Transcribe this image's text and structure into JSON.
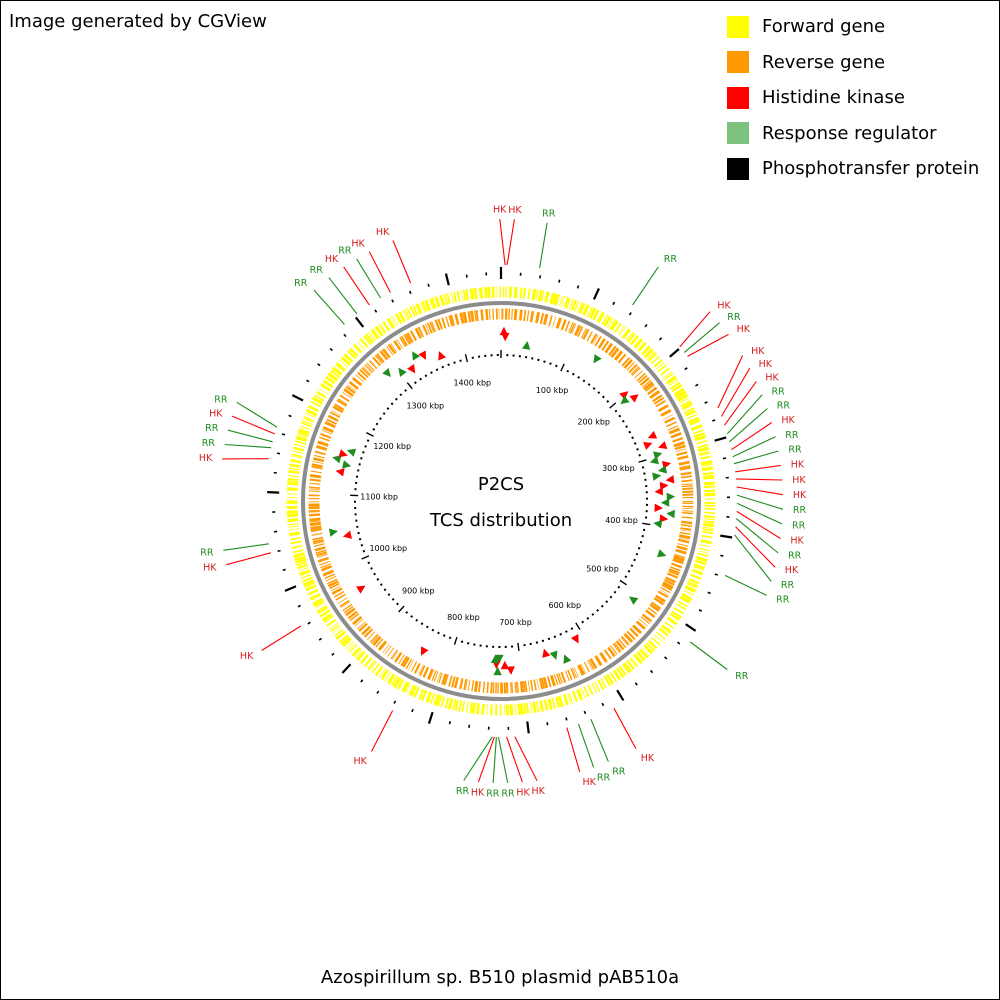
{
  "credit": "Image generated by CGView",
  "plasmid_name": "Azospirillum sp. B510 plasmid pAB510a",
  "center": {
    "line1": "P2CS",
    "line2": "TCS distribution"
  },
  "legend": [
    {
      "label": "Forward gene",
      "color": "#ffff00"
    },
    {
      "label": "Reverse gene",
      "color": "#ff9900"
    },
    {
      "label": "Histidine kinase",
      "color": "#ff0000"
    },
    {
      "label": "Response regulator",
      "color": "#7dc27d"
    },
    {
      "label": "Phosphotransfer protein",
      "color": "#000000"
    }
  ],
  "colors": {
    "forward": "#ffff00",
    "reverse": "#ff9900",
    "hk": "#ff0000",
    "hk_label": "#d62020",
    "rr": "#1e8c1e",
    "rr_label": "#1e8c1e",
    "backbone": "#8c8c8c"
  },
  "sequence_length_kbp": 1455,
  "tick_labels": [
    "100 kbp",
    "200 kbp",
    "300 kbp",
    "400 kbp",
    "500 kbp",
    "600 kbp",
    "700 kbp",
    "800 kbp",
    "900 kbp",
    "1000 kbp",
    "1100 kbp",
    "1200 kbp",
    "1300 kbp",
    "1400 kbp"
  ],
  "tick_positions_kbp": [
    100,
    200,
    300,
    400,
    500,
    600,
    700,
    800,
    900,
    1000,
    1100,
    1200,
    1300,
    1400
  ],
  "features": [
    {
      "type": "HK",
      "pos_kbp": 4,
      "label": "HK"
    },
    {
      "type": "HK",
      "pos_kbp": 6,
      "label": "HK"
    },
    {
      "type": "RR",
      "pos_kbp": 38,
      "label": "RR"
    },
    {
      "type": "RR",
      "pos_kbp": 137,
      "label": "RR"
    },
    {
      "type": "HK",
      "pos_kbp": 199,
      "label": "HK"
    },
    {
      "type": "RR",
      "pos_kbp": 206,
      "label": "RR"
    },
    {
      "type": "HK",
      "pos_kbp": 211,
      "label": "HK"
    },
    {
      "type": "HK",
      "pos_kbp": 270,
      "label": "HK"
    },
    {
      "type": "HK",
      "pos_kbp": 279,
      "label": "HK"
    },
    {
      "type": "HK",
      "pos_kbp": 288,
      "label": "HK"
    },
    {
      "type": "RR",
      "pos_kbp": 297,
      "label": "RR"
    },
    {
      "type": "RR",
      "pos_kbp": 305,
      "label": "RR"
    },
    {
      "type": "HK",
      "pos_kbp": 313,
      "label": "HK"
    },
    {
      "type": "RR",
      "pos_kbp": 320,
      "label": "RR"
    },
    {
      "type": "RR",
      "pos_kbp": 327,
      "label": "RR"
    },
    {
      "type": "HK",
      "pos_kbp": 335,
      "label": "HK"
    },
    {
      "type": "HK",
      "pos_kbp": 342,
      "label": "HK"
    },
    {
      "type": "HK",
      "pos_kbp": 350,
      "label": "HK"
    },
    {
      "type": "RR",
      "pos_kbp": 358,
      "label": "RR"
    },
    {
      "type": "RR",
      "pos_kbp": 366,
      "label": "RR"
    },
    {
      "type": "HK",
      "pos_kbp": 374,
      "label": "HK"
    },
    {
      "type": "RR",
      "pos_kbp": 381,
      "label": "RR"
    },
    {
      "type": "HK",
      "pos_kbp": 389,
      "label": "HK"
    },
    {
      "type": "RR",
      "pos_kbp": 397,
      "label": "RR"
    },
    {
      "type": "RR",
      "pos_kbp": 438,
      "label": "RR"
    },
    {
      "type": "RR",
      "pos_kbp": 512,
      "label": "RR"
    },
    {
      "type": "HK",
      "pos_kbp": 612,
      "label": "HK"
    },
    {
      "type": "RR",
      "pos_kbp": 637,
      "label": "RR"
    },
    {
      "type": "RR",
      "pos_kbp": 650,
      "label": "RR"
    },
    {
      "type": "HK",
      "pos_kbp": 662,
      "label": "HK"
    },
    {
      "type": "HK",
      "pos_kbp": 714,
      "label": "HK"
    },
    {
      "type": "HK",
      "pos_kbp": 722,
      "label": "HK"
    },
    {
      "type": "RR",
      "pos_kbp": 730,
      "label": "RR"
    },
    {
      "type": "RR",
      "pos_kbp": 732,
      "label": "RR"
    },
    {
      "type": "HK",
      "pos_kbp": 734,
      "label": "HK"
    },
    {
      "type": "RR",
      "pos_kbp": 736,
      "label": "RR"
    },
    {
      "type": "HK",
      "pos_kbp": 838,
      "label": "HK"
    },
    {
      "type": "HK",
      "pos_kbp": 962,
      "label": "HK"
    },
    {
      "type": "HK",
      "pos_kbp": 1040,
      "label": "HK"
    },
    {
      "type": "RR",
      "pos_kbp": 1049,
      "label": "RR"
    },
    {
      "type": "HK",
      "pos_kbp": 1133,
      "label": "HK"
    },
    {
      "type": "RR",
      "pos_kbp": 1144,
      "label": "RR"
    },
    {
      "type": "RR",
      "pos_kbp": 1150,
      "label": "RR"
    },
    {
      "type": "HK",
      "pos_kbp": 1158,
      "label": "HK"
    },
    {
      "type": "RR",
      "pos_kbp": 1165,
      "label": "RR"
    },
    {
      "type": "RR",
      "pos_kbp": 1287,
      "label": "RR"
    },
    {
      "type": "RR",
      "pos_kbp": 1303,
      "label": "RR"
    },
    {
      "type": "HK",
      "pos_kbp": 1318,
      "label": "HK"
    },
    {
      "type": "RR",
      "pos_kbp": 1331,
      "label": "RR"
    },
    {
      "type": "HK",
      "pos_kbp": 1342,
      "label": "HK"
    },
    {
      "type": "HK",
      "pos_kbp": 1364,
      "label": "HK"
    }
  ]
}
